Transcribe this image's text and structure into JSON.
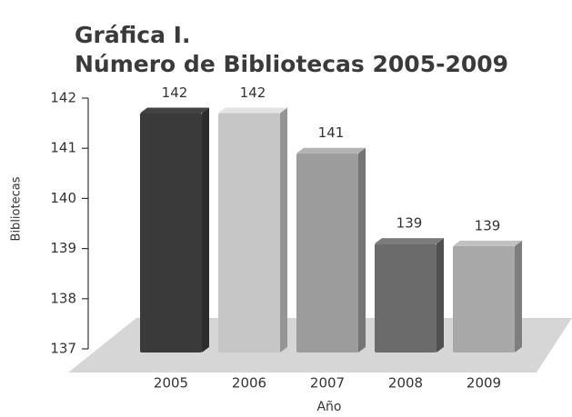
{
  "chart_data": {
    "type": "bar3d",
    "title": "Gráfica I.",
    "subtitle": "Número de Bibliotecas 2005-2009",
    "y_label": "Bibliotecas",
    "x_label": "Año",
    "categories": [
      "2005",
      "2006",
      "2007",
      "2008",
      "2009"
    ],
    "values": [
      141.7,
      141.7,
      140.9,
      139.1,
      139.05
    ],
    "value_labels": [
      "142",
      "142",
      "141",
      "139",
      "139"
    ],
    "colors": [
      "#3a3a3a",
      "#c6c6c6",
      "#9c9c9c",
      "#6b6b6b",
      "#a8a8a8"
    ],
    "ylim": [
      137,
      142
    ],
    "yticks": [
      137,
      138,
      139,
      140,
      141,
      142
    ]
  }
}
